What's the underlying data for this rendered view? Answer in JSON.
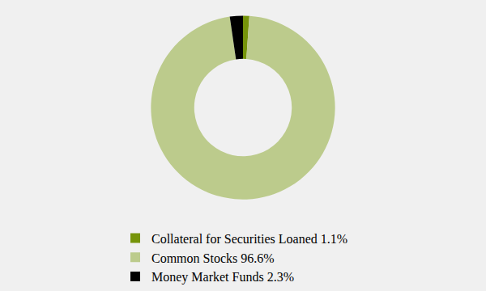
{
  "chart_data": {
    "type": "pie",
    "categories": [
      "Collateral for Securities Loaned 1.1%",
      "Common Stocks 96.6%",
      "Money Market Funds 2.3%"
    ],
    "values": [
      1.1,
      96.6,
      2.3
    ],
    "colors": [
      "#76940a",
      "#bccb8c",
      "#000000"
    ],
    "legend": "bottom"
  }
}
